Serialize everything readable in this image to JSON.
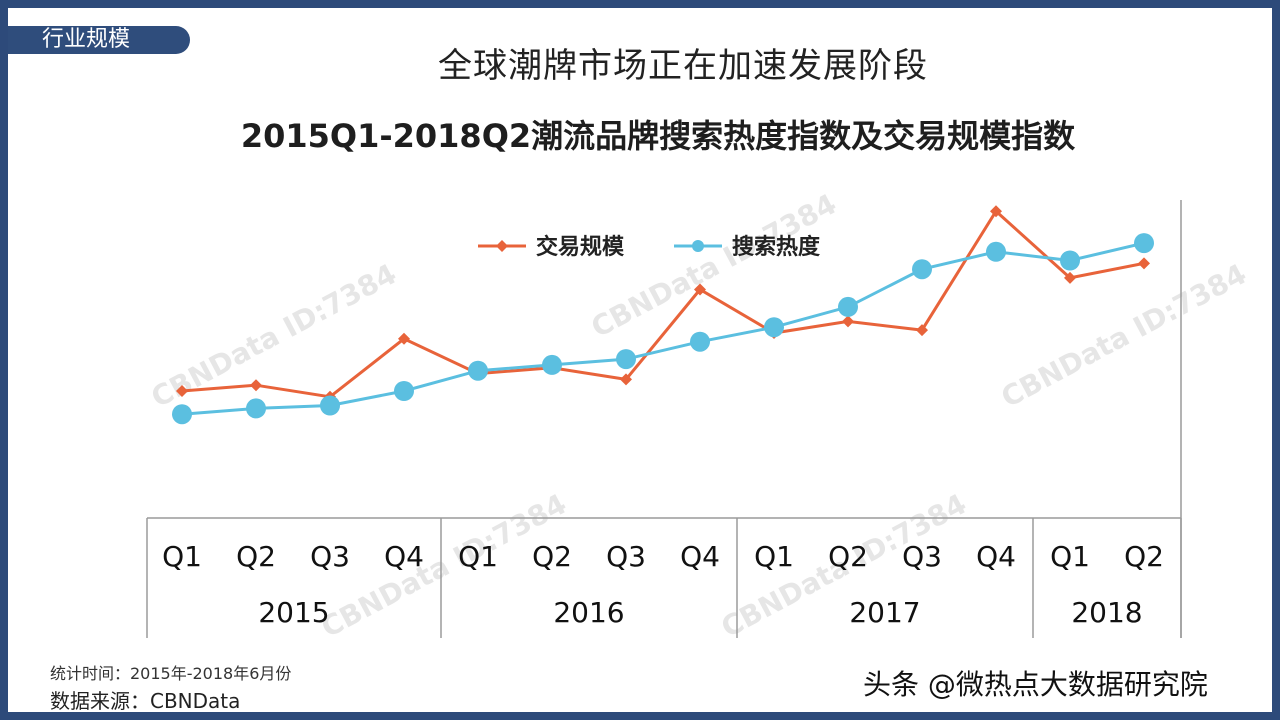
{
  "section_tag": "行业规模",
  "slide_title": "全球潮牌市场正在加速发展阶段",
  "footer": {
    "period": "统计时间：2015年-2018年6月份",
    "source": "数据来源：CBNData"
  },
  "weibo_mark": "头条 @微热点大数据研究院",
  "watermark": "CBNData ID:7384",
  "colors": {
    "background_border": "#2d4a7a",
    "trade": "#e8633a",
    "search": "#5bbfe0"
  },
  "chart_data": {
    "type": "line",
    "title": "2015Q1-2018Q2潮流品牌搜索热度指数及交易规模指数",
    "categories": [
      "Q1",
      "Q2",
      "Q3",
      "Q4",
      "Q1",
      "Q2",
      "Q3",
      "Q4",
      "Q1",
      "Q2",
      "Q3",
      "Q4",
      "Q1",
      "Q2"
    ],
    "year_groups": [
      {
        "label": "2015",
        "count": 4
      },
      {
        "label": "2016",
        "count": 4
      },
      {
        "label": "2017",
        "count": 4
      },
      {
        "label": "2018",
        "count": 2
      }
    ],
    "series": [
      {
        "name": "交易规模",
        "values": [
          30,
          32,
          28,
          48,
          36,
          38,
          34,
          65,
          50,
          54,
          51,
          92,
          69,
          74
        ],
        "color": "#e8633a",
        "marker": "diamond"
      },
      {
        "name": "搜索热度",
        "values": [
          22,
          24,
          25,
          30,
          37,
          39,
          41,
          47,
          52,
          59,
          72,
          78,
          75,
          81
        ],
        "color": "#5bbfe0",
        "marker": "circle"
      }
    ],
    "ylim": [
      0,
      100
    ],
    "grid": false,
    "legend": "top"
  }
}
